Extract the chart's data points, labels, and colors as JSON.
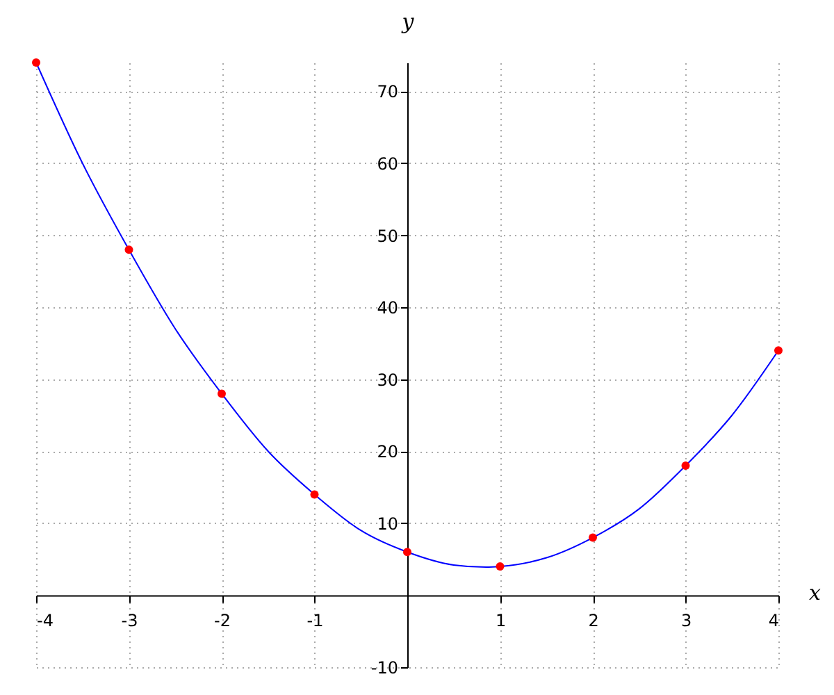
{
  "chart_data": {
    "type": "line",
    "xlabel": "x",
    "ylabel": "y",
    "xlim": [
      -4,
      4
    ],
    "ylim": [
      -10,
      74
    ],
    "xticks": [
      -4,
      -3,
      -2,
      -1,
      1,
      2,
      3,
      4
    ],
    "yticks": [
      -10,
      10,
      20,
      30,
      40,
      50,
      60,
      70
    ],
    "grid": true,
    "series": [
      {
        "type": "line",
        "color": "#0000ff",
        "x": [
          -4,
          -3.5,
          -3,
          -2.5,
          -2,
          -1.5,
          -1,
          -0.5,
          0,
          0.5,
          0.85,
          1,
          1.5,
          2,
          2.5,
          3,
          3.5,
          4
        ],
        "values": [
          74,
          60,
          48,
          37,
          28,
          20,
          14,
          9,
          6,
          4.2,
          3.9,
          4,
          5.2,
          8,
          12,
          18,
          25,
          34
        ]
      },
      {
        "type": "scatter",
        "color": "#ff0000",
        "x": [
          -4,
          -3,
          -2,
          -1,
          0,
          1,
          2,
          3,
          4
        ],
        "values": [
          74,
          48,
          28,
          14,
          6,
          4,
          8,
          18,
          34
        ]
      }
    ]
  }
}
